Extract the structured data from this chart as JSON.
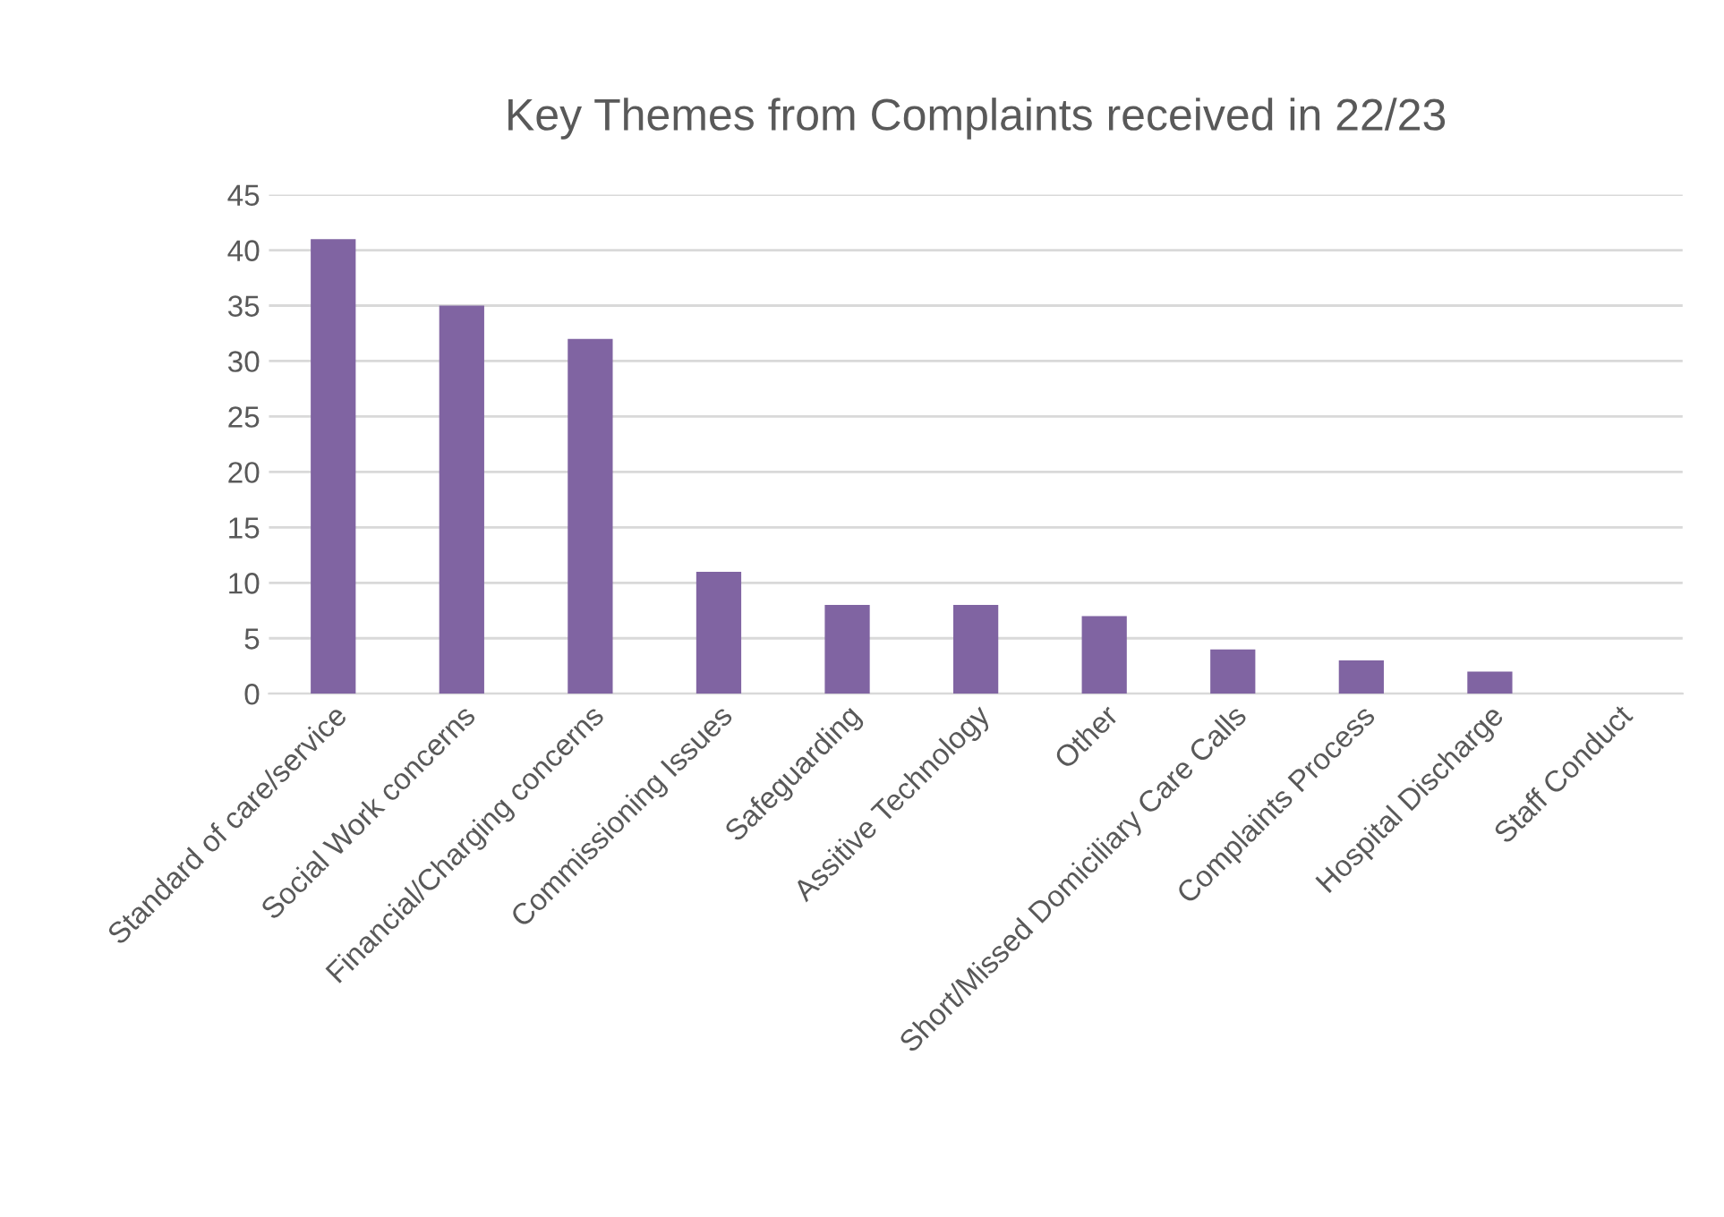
{
  "chart_data": {
    "type": "bar",
    "title": "Key Themes from Complaints received in 22/23",
    "categories": [
      "Standard of care/service",
      "Social Work concerns",
      "Financial/Charging concerns",
      "Commissioning Issues",
      "Safeguarding",
      "Assitive Technology",
      "Other",
      "Short/Missed Domiciliary Care Calls",
      "Complaints Process",
      "Hospital Discharge",
      "Staff Conduct"
    ],
    "values": [
      41,
      35,
      32,
      11,
      8,
      8,
      7,
      4,
      3,
      2,
      0
    ],
    "color": "#8064a2",
    "ylim": [
      0,
      45
    ],
    "yticks": [
      0,
      5,
      10,
      15,
      20,
      25,
      30,
      35,
      40,
      45
    ],
    "grid": "y"
  }
}
